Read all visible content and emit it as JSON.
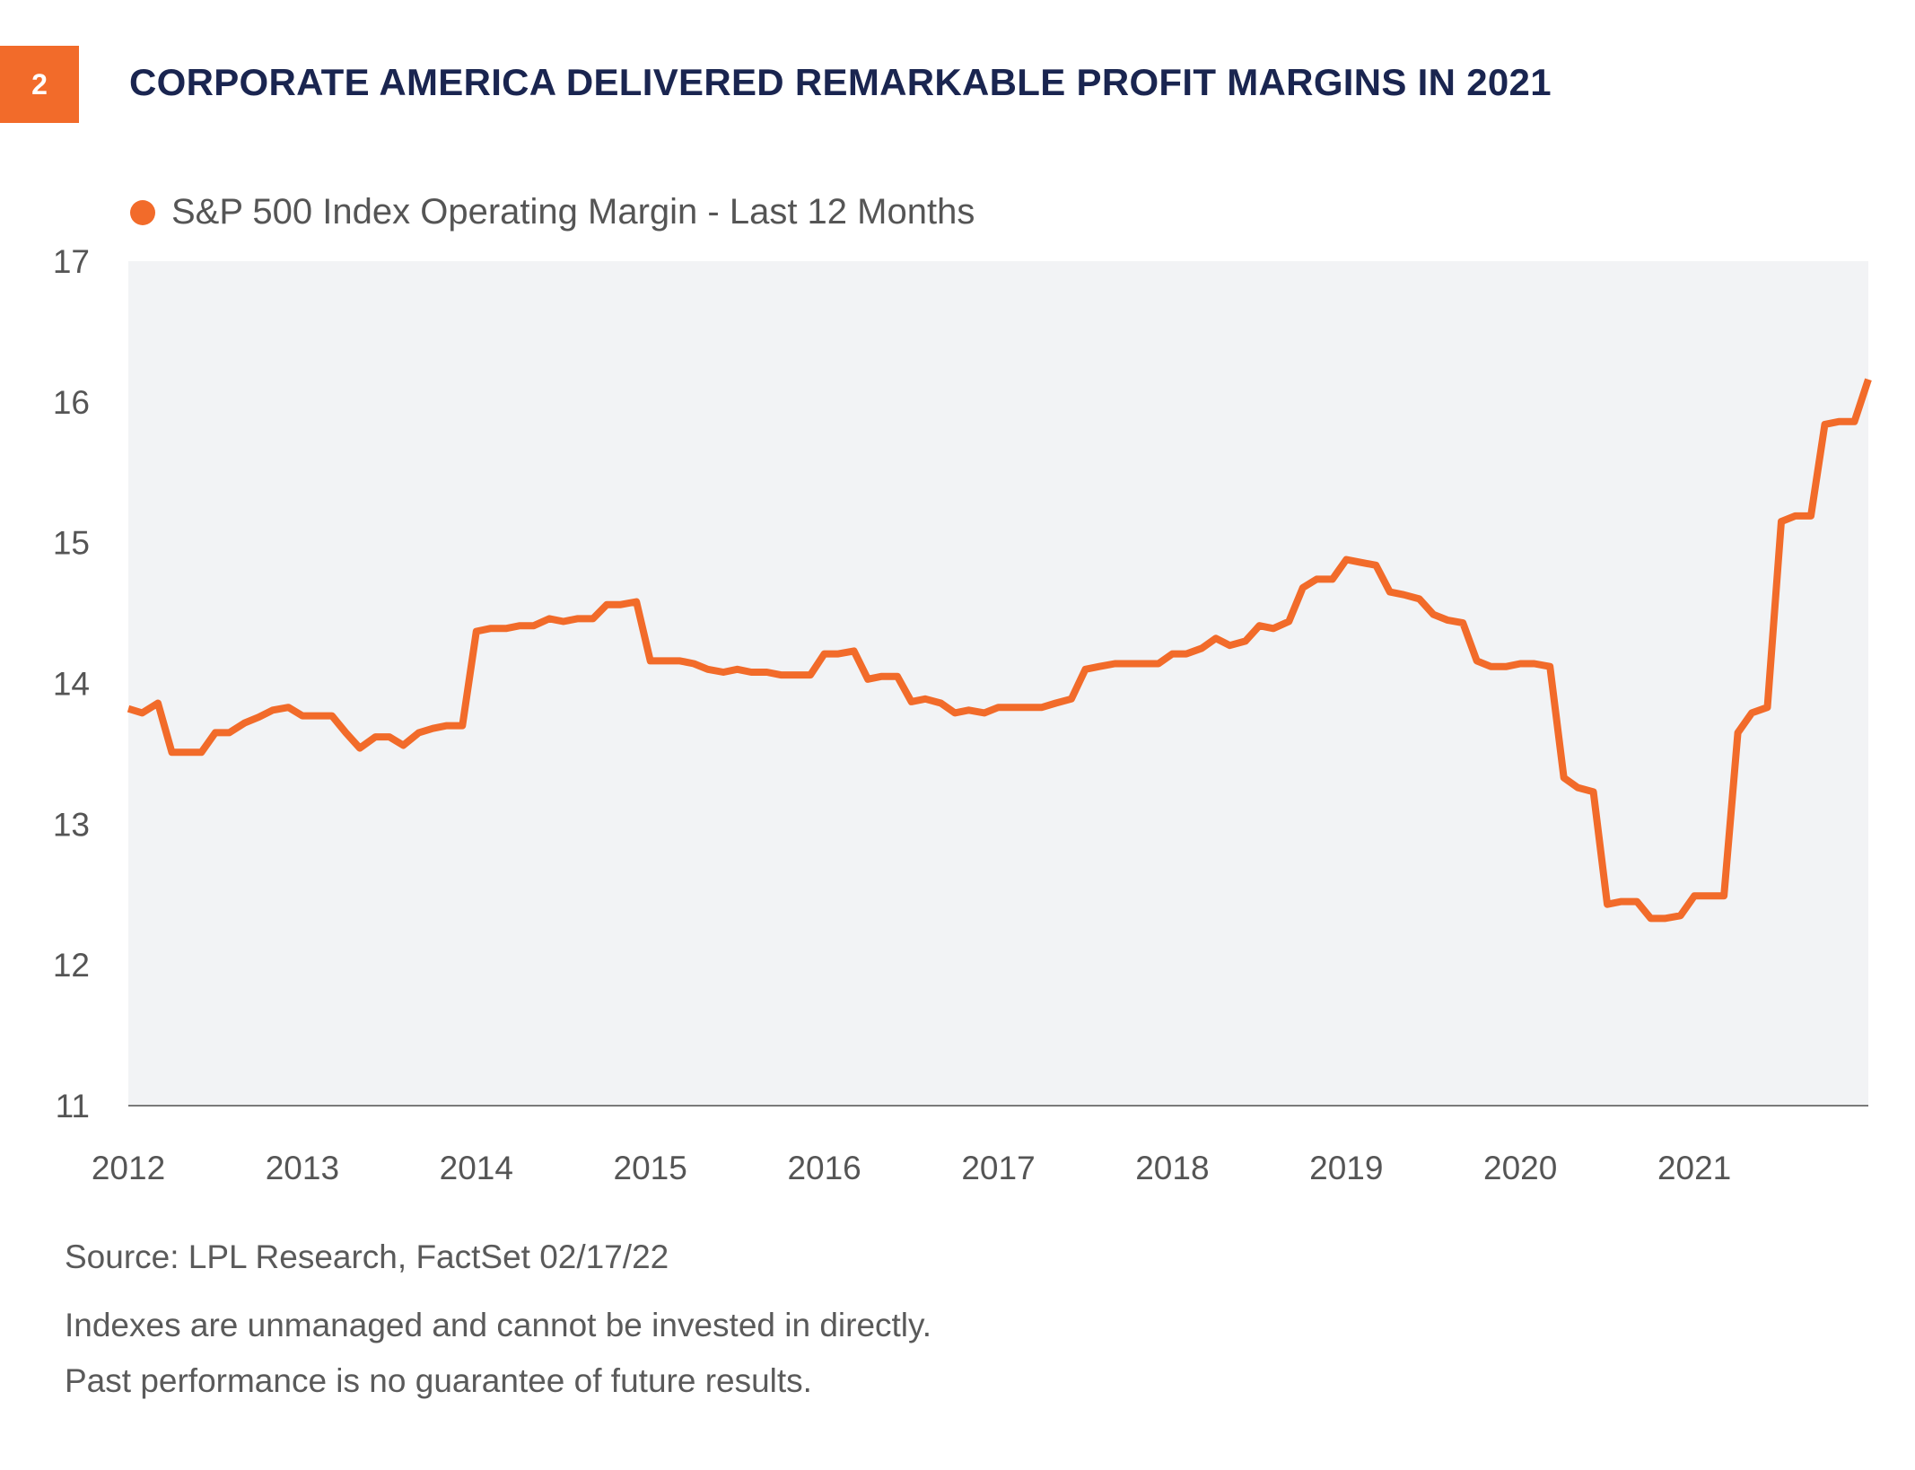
{
  "badge": {
    "label": "2"
  },
  "title": "CORPORATE AMERICA DELIVERED REMARKABLE PROFIT MARGINS IN 2021",
  "colors": {
    "accent": "#f26b2a",
    "title": "#1a2550",
    "plot_bg": "#f2f3f5",
    "axis": "#7a7a7a"
  },
  "footer": {
    "source": "Source: LPL Research, FactSet  02/17/22",
    "disclaimer1": "Indexes are unmanaged and cannot be invested in directly.",
    "disclaimer2": "Past performance is no guarantee of future results."
  },
  "chart_data": {
    "type": "line",
    "title": "CORPORATE AMERICA DELIVERED REMARKABLE PROFIT MARGINS IN 2021",
    "xlabel": "",
    "ylabel": "",
    "ylim": [
      11,
      17
    ],
    "yticks": [
      11,
      12,
      13,
      14,
      15,
      16,
      17
    ],
    "xlim": [
      2012,
      2022
    ],
    "xticks": [
      2012,
      2013,
      2014,
      2015,
      2016,
      2017,
      2018,
      2019,
      2020,
      2021
    ],
    "grid": false,
    "legend_position": "top-left",
    "series": [
      {
        "name": "S&P 500 Index Operating Margin - Last 12 Months",
        "color": "#f26b2a",
        "x": [
          2012.0,
          2012.08,
          2012.17,
          2012.25,
          2012.33,
          2012.42,
          2012.5,
          2012.58,
          2012.67,
          2012.75,
          2012.83,
          2012.92,
          2013.0,
          2013.08,
          2013.17,
          2013.25,
          2013.33,
          2013.42,
          2013.5,
          2013.58,
          2013.67,
          2013.75,
          2013.83,
          2013.92,
          2014.0,
          2014.08,
          2014.17,
          2014.25,
          2014.33,
          2014.42,
          2014.5,
          2014.58,
          2014.67,
          2014.75,
          2014.83,
          2014.92,
          2015.0,
          2015.08,
          2015.17,
          2015.25,
          2015.33,
          2015.42,
          2015.5,
          2015.58,
          2015.67,
          2015.75,
          2015.83,
          2015.92,
          2016.0,
          2016.08,
          2016.17,
          2016.25,
          2016.33,
          2016.42,
          2016.5,
          2016.58,
          2016.67,
          2016.75,
          2016.83,
          2016.92,
          2017.0,
          2017.08,
          2017.17,
          2017.25,
          2017.33,
          2017.42,
          2017.5,
          2017.58,
          2017.67,
          2017.75,
          2017.83,
          2017.92,
          2018.0,
          2018.08,
          2018.17,
          2018.25,
          2018.33,
          2018.42,
          2018.5,
          2018.58,
          2018.67,
          2018.75,
          2018.83,
          2018.92,
          2019.0,
          2019.08,
          2019.17,
          2019.25,
          2019.33,
          2019.42,
          2019.5,
          2019.58,
          2019.67,
          2019.75,
          2019.83,
          2019.92,
          2020.0,
          2020.08,
          2020.17,
          2020.25,
          2020.33,
          2020.42,
          2020.5,
          2020.58,
          2020.67,
          2020.75,
          2020.83,
          2020.92,
          2021.0,
          2021.08,
          2021.17,
          2021.25,
          2021.33,
          2021.42,
          2021.5,
          2021.58,
          2021.67,
          2021.75,
          2021.83,
          2021.92,
          2022.0
        ],
        "y": [
          13.82,
          13.79,
          13.86,
          13.51,
          13.51,
          13.51,
          13.65,
          13.65,
          13.72,
          13.76,
          13.81,
          13.83,
          13.77,
          13.77,
          13.77,
          13.65,
          13.54,
          13.62,
          13.62,
          13.56,
          13.65,
          13.68,
          13.7,
          13.7,
          14.37,
          14.39,
          14.39,
          14.41,
          14.41,
          14.46,
          14.44,
          14.46,
          14.46,
          14.56,
          14.56,
          14.58,
          14.16,
          14.16,
          14.16,
          14.14,
          14.1,
          14.08,
          14.1,
          14.08,
          14.08,
          14.06,
          14.06,
          14.06,
          14.21,
          14.21,
          14.23,
          14.03,
          14.05,
          14.05,
          13.87,
          13.89,
          13.86,
          13.79,
          13.81,
          13.79,
          13.83,
          13.83,
          13.83,
          13.83,
          13.86,
          13.89,
          14.1,
          14.12,
          14.14,
          14.14,
          14.14,
          14.14,
          14.21,
          14.21,
          14.25,
          14.32,
          14.27,
          14.3,
          14.41,
          14.39,
          14.44,
          14.68,
          14.74,
          14.74,
          14.88,
          14.86,
          14.84,
          14.65,
          14.63,
          14.6,
          14.49,
          14.45,
          14.43,
          14.16,
          14.12,
          14.12,
          14.14,
          14.14,
          14.12,
          13.33,
          13.26,
          13.23,
          12.43,
          12.45,
          12.45,
          12.33,
          12.33,
          12.35,
          12.49,
          12.49,
          12.49,
          13.65,
          13.79,
          13.83,
          15.15,
          15.19,
          15.19,
          15.84,
          15.86,
          15.86,
          16.16
        ]
      }
    ]
  }
}
